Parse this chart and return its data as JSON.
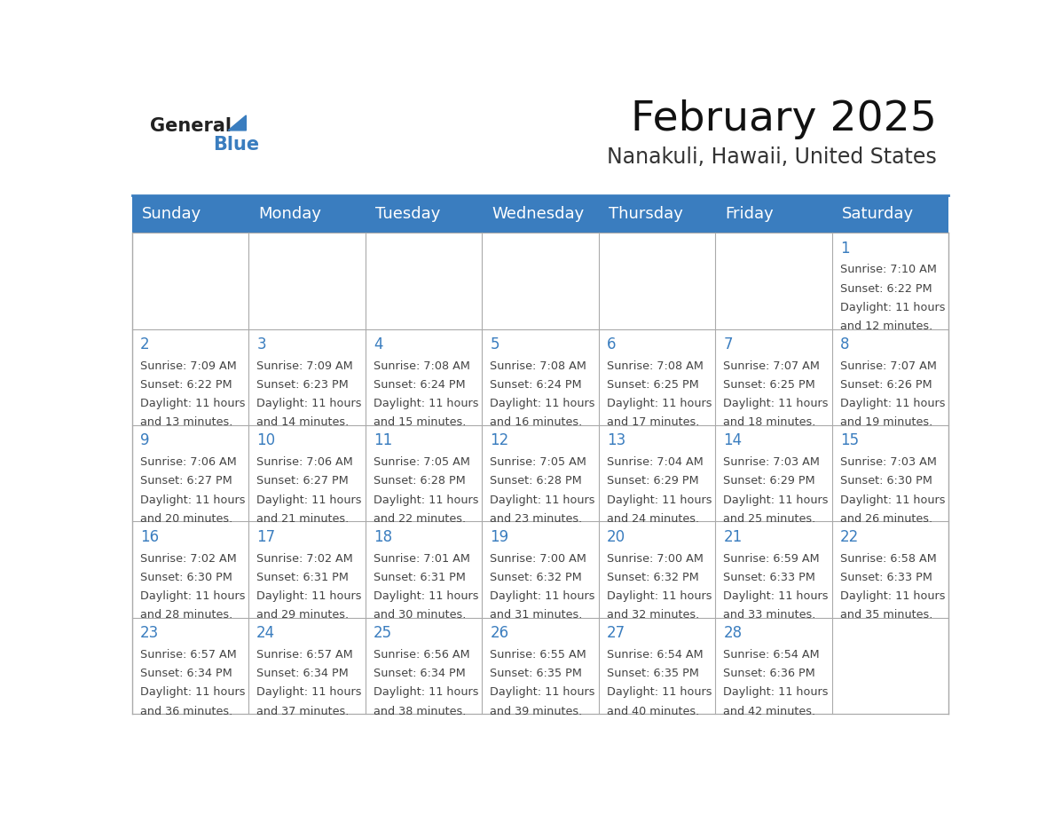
{
  "title": "February 2025",
  "subtitle": "Nanakuli, Hawaii, United States",
  "days_of_week": [
    "Sunday",
    "Monday",
    "Tuesday",
    "Wednesday",
    "Thursday",
    "Friday",
    "Saturday"
  ],
  "header_bg_color": "#3a7dbf",
  "header_text_color": "#ffffff",
  "day_number_color": "#3a7dbf",
  "info_text_color": "#444444",
  "border_color": "#3a7dbf",
  "grid_line_color": "#aaaaaa",
  "logo_general_color": "#222222",
  "logo_blue_color": "#3a7dbf",
  "calendar_data": [
    {
      "day": 1,
      "col": 6,
      "row": 0,
      "sunrise": "7:10 AM",
      "sunset": "6:22 PM",
      "daylight": "11 hours and 12 minutes."
    },
    {
      "day": 2,
      "col": 0,
      "row": 1,
      "sunrise": "7:09 AM",
      "sunset": "6:22 PM",
      "daylight": "11 hours and 13 minutes."
    },
    {
      "day": 3,
      "col": 1,
      "row": 1,
      "sunrise": "7:09 AM",
      "sunset": "6:23 PM",
      "daylight": "11 hours and 14 minutes."
    },
    {
      "day": 4,
      "col": 2,
      "row": 1,
      "sunrise": "7:08 AM",
      "sunset": "6:24 PM",
      "daylight": "11 hours and 15 minutes."
    },
    {
      "day": 5,
      "col": 3,
      "row": 1,
      "sunrise": "7:08 AM",
      "sunset": "6:24 PM",
      "daylight": "11 hours and 16 minutes."
    },
    {
      "day": 6,
      "col": 4,
      "row": 1,
      "sunrise": "7:08 AM",
      "sunset": "6:25 PM",
      "daylight": "11 hours and 17 minutes."
    },
    {
      "day": 7,
      "col": 5,
      "row": 1,
      "sunrise": "7:07 AM",
      "sunset": "6:25 PM",
      "daylight": "11 hours and 18 minutes."
    },
    {
      "day": 8,
      "col": 6,
      "row": 1,
      "sunrise": "7:07 AM",
      "sunset": "6:26 PM",
      "daylight": "11 hours and 19 minutes."
    },
    {
      "day": 9,
      "col": 0,
      "row": 2,
      "sunrise": "7:06 AM",
      "sunset": "6:27 PM",
      "daylight": "11 hours and 20 minutes."
    },
    {
      "day": 10,
      "col": 1,
      "row": 2,
      "sunrise": "7:06 AM",
      "sunset": "6:27 PM",
      "daylight": "11 hours and 21 minutes."
    },
    {
      "day": 11,
      "col": 2,
      "row": 2,
      "sunrise": "7:05 AM",
      "sunset": "6:28 PM",
      "daylight": "11 hours and 22 minutes."
    },
    {
      "day": 12,
      "col": 3,
      "row": 2,
      "sunrise": "7:05 AM",
      "sunset": "6:28 PM",
      "daylight": "11 hours and 23 minutes."
    },
    {
      "day": 13,
      "col": 4,
      "row": 2,
      "sunrise": "7:04 AM",
      "sunset": "6:29 PM",
      "daylight": "11 hours and 24 minutes."
    },
    {
      "day": 14,
      "col": 5,
      "row": 2,
      "sunrise": "7:03 AM",
      "sunset": "6:29 PM",
      "daylight": "11 hours and 25 minutes."
    },
    {
      "day": 15,
      "col": 6,
      "row": 2,
      "sunrise": "7:03 AM",
      "sunset": "6:30 PM",
      "daylight": "11 hours and 26 minutes."
    },
    {
      "day": 16,
      "col": 0,
      "row": 3,
      "sunrise": "7:02 AM",
      "sunset": "6:30 PM",
      "daylight": "11 hours and 28 minutes."
    },
    {
      "day": 17,
      "col": 1,
      "row": 3,
      "sunrise": "7:02 AM",
      "sunset": "6:31 PM",
      "daylight": "11 hours and 29 minutes."
    },
    {
      "day": 18,
      "col": 2,
      "row": 3,
      "sunrise": "7:01 AM",
      "sunset": "6:31 PM",
      "daylight": "11 hours and 30 minutes."
    },
    {
      "day": 19,
      "col": 3,
      "row": 3,
      "sunrise": "7:00 AM",
      "sunset": "6:32 PM",
      "daylight": "11 hours and 31 minutes."
    },
    {
      "day": 20,
      "col": 4,
      "row": 3,
      "sunrise": "7:00 AM",
      "sunset": "6:32 PM",
      "daylight": "11 hours and 32 minutes."
    },
    {
      "day": 21,
      "col": 5,
      "row": 3,
      "sunrise": "6:59 AM",
      "sunset": "6:33 PM",
      "daylight": "11 hours and 33 minutes."
    },
    {
      "day": 22,
      "col": 6,
      "row": 3,
      "sunrise": "6:58 AM",
      "sunset": "6:33 PM",
      "daylight": "11 hours and 35 minutes."
    },
    {
      "day": 23,
      "col": 0,
      "row": 4,
      "sunrise": "6:57 AM",
      "sunset": "6:34 PM",
      "daylight": "11 hours and 36 minutes."
    },
    {
      "day": 24,
      "col": 1,
      "row": 4,
      "sunrise": "6:57 AM",
      "sunset": "6:34 PM",
      "daylight": "11 hours and 37 minutes."
    },
    {
      "day": 25,
      "col": 2,
      "row": 4,
      "sunrise": "6:56 AM",
      "sunset": "6:34 PM",
      "daylight": "11 hours and 38 minutes."
    },
    {
      "day": 26,
      "col": 3,
      "row": 4,
      "sunrise": "6:55 AM",
      "sunset": "6:35 PM",
      "daylight": "11 hours and 39 minutes."
    },
    {
      "day": 27,
      "col": 4,
      "row": 4,
      "sunrise": "6:54 AM",
      "sunset": "6:35 PM",
      "daylight": "11 hours and 40 minutes."
    },
    {
      "day": 28,
      "col": 5,
      "row": 4,
      "sunrise": "6:54 AM",
      "sunset": "6:36 PM",
      "daylight": "11 hours and 42 minutes."
    }
  ]
}
